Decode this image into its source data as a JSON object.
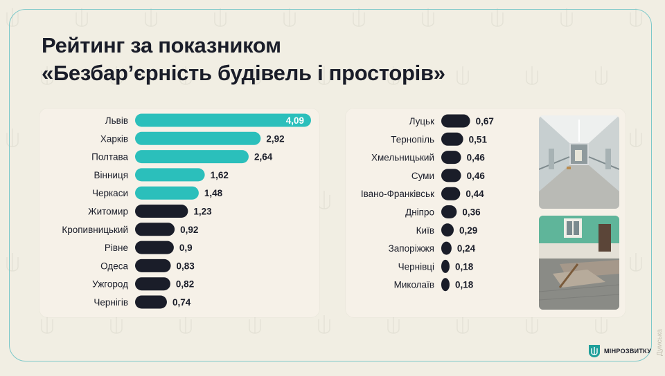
{
  "title": {
    "line1": "Рейтинг за показником",
    "line2": "«Безбар’єрність будівель і просторів»"
  },
  "colors": {
    "background": "#f1eee3",
    "panel": "#f6f1e8",
    "accent_teal": "#2bbfbb",
    "bar_dark": "#1a1d29",
    "frame_border": "#7cc8c9"
  },
  "chart_data": [
    {
      "type": "bar",
      "orientation": "horizontal",
      "categories": [
        "Львів",
        "Харків",
        "Полтава",
        "Вінниця",
        "Черкаси",
        "Житомир",
        "Кропивницький",
        "Рівне",
        "Одеса",
        "Ужгород",
        "Чернігів"
      ],
      "values": [
        4.09,
        2.92,
        2.64,
        1.62,
        1.48,
        1.23,
        0.92,
        0.9,
        0.83,
        0.82,
        0.74
      ],
      "value_labels": [
        "4,09",
        "2,92",
        "2,64",
        "1,62",
        "1,48",
        "1,23",
        "0,92",
        "0,9",
        "0,83",
        "0,82",
        "0,74"
      ],
      "bar_colors": [
        "#2bbfbb",
        "#2bbfbb",
        "#2bbfbb",
        "#2bbfbb",
        "#2bbfbb",
        "#1a1d29",
        "#1a1d29",
        "#1a1d29",
        "#1a1d29",
        "#1a1d29",
        "#1a1d29"
      ],
      "xlim": [
        0,
        4.09
      ],
      "grid": false
    },
    {
      "type": "bar",
      "orientation": "horizontal",
      "categories": [
        "Луцьк",
        "Тернопіль",
        "Хмельницький",
        "Суми",
        "Івано-Франківськ",
        "Дніпро",
        "Київ",
        "Запоріжжя",
        "Чернівці",
        "Миколаїв"
      ],
      "values": [
        0.67,
        0.51,
        0.46,
        0.46,
        0.44,
        0.36,
        0.29,
        0.24,
        0.18,
        0.18
      ],
      "value_labels": [
        "0,67",
        "0,51",
        "0,46",
        "0,46",
        "0,44",
        "0,36",
        "0,29",
        "0,24",
        "0,18",
        "0,18"
      ],
      "bar_colors": [
        "#1a1d29",
        "#1a1d29",
        "#1a1d29",
        "#1a1d29",
        "#1a1d29",
        "#1a1d29",
        "#1a1d29",
        "#1a1d29",
        "#1a1d29",
        "#1a1d29"
      ],
      "xlim": [
        0,
        4.09
      ],
      "grid": false
    }
  ],
  "logo": {
    "text": "МІНРОЗВИТКУ",
    "icon": "trident-shield-icon"
  },
  "watermark": {
    "text": "Думська"
  },
  "photos": [
    {
      "name": "corridor-photo",
      "depicts": "hospital corridor with handrails"
    },
    {
      "name": "yard-photo",
      "depicts": "building entrance with paved ramp"
    }
  ]
}
